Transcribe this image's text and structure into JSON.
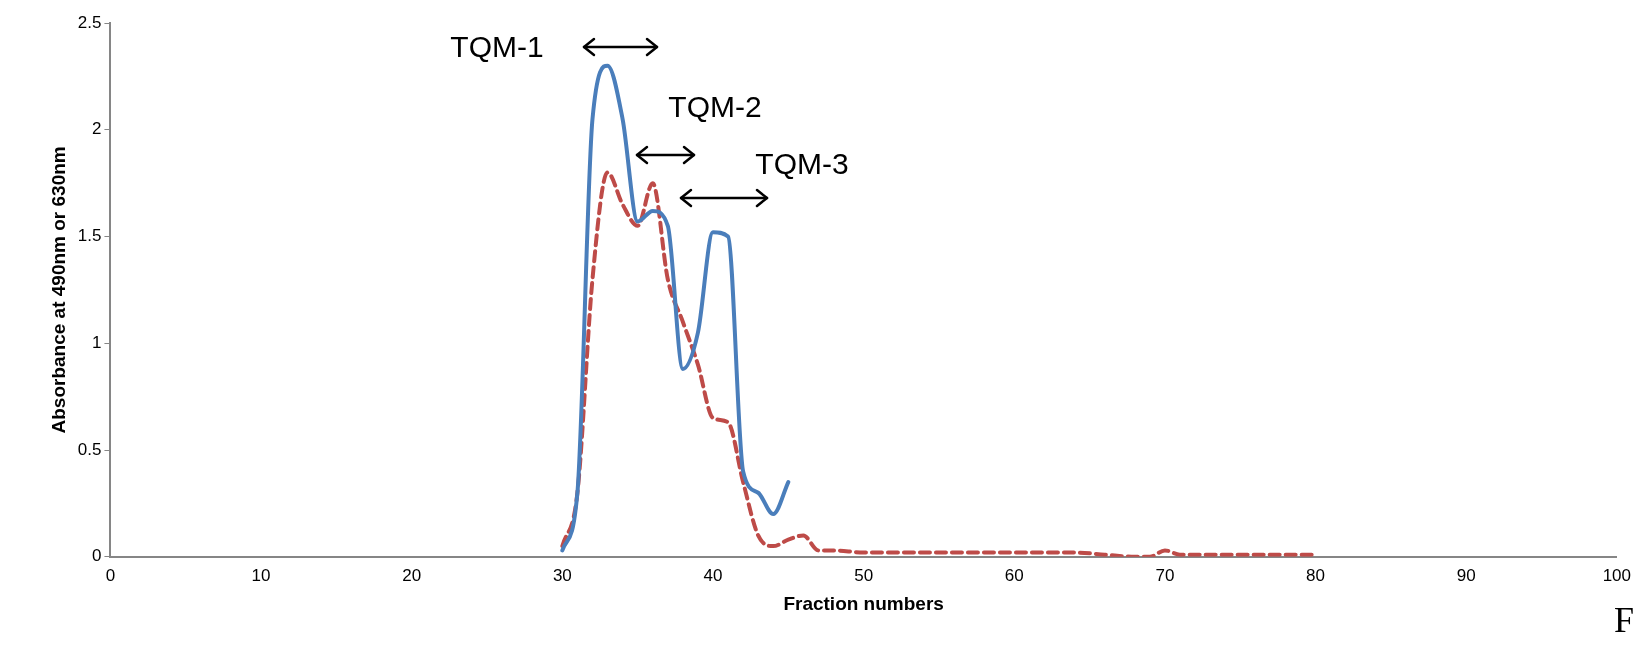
{
  "chart_data": {
    "type": "line",
    "xlabel": "Fraction numbers",
    "ylabel": "Absorbance at 490nm or 630nm",
    "xlim": [
      0,
      100
    ],
    "xticks": [
      0,
      10,
      20,
      30,
      40,
      50,
      60,
      70,
      80,
      90,
      100
    ],
    "ylim": [
      0,
      2.5
    ],
    "yticks": [
      0,
      0.5,
      1,
      1.5,
      2,
      2.5
    ],
    "grid": false,
    "legend": false,
    "marker": "none",
    "series": [
      {
        "color": "#4a7ebb",
        "line_style": "solid",
        "x": [
          30,
          31,
          32,
          33,
          34,
          35,
          36,
          37,
          38,
          39,
          40,
          41,
          42,
          43,
          44,
          45
        ],
        "values": [
          0.03,
          0.3,
          2.05,
          2.3,
          2.05,
          1.57,
          1.62,
          1.55,
          0.88,
          1.05,
          1.52,
          1.5,
          0.4,
          0.3,
          0.2,
          0.35
        ]
      },
      {
        "color": "#be4b48",
        "line_style": "dashed",
        "x": [
          30,
          31,
          32,
          33,
          34,
          35,
          36,
          37,
          38,
          39,
          40,
          41,
          42,
          43,
          44,
          45,
          46,
          47,
          48,
          50,
          52,
          54,
          56,
          58,
          60,
          62,
          64,
          66,
          68,
          69,
          70,
          71,
          72,
          74,
          76,
          78,
          80
        ],
        "values": [
          0.05,
          0.3,
          1.3,
          1.8,
          1.65,
          1.55,
          1.75,
          1.3,
          1.1,
          0.9,
          0.65,
          0.63,
          0.35,
          0.1,
          0.05,
          0.08,
          0.1,
          0.03,
          0.03,
          0.02,
          0.02,
          0.02,
          0.02,
          0.02,
          0.02,
          0.02,
          0.02,
          0.01,
          0.0,
          0.0,
          0.03,
          0.01,
          0.01,
          0.01,
          0.01,
          0.01,
          0.01
        ]
      }
    ],
    "annotations": [
      "TQM-1",
      "TQM-2",
      "TQM-3",
      "F"
    ]
  }
}
